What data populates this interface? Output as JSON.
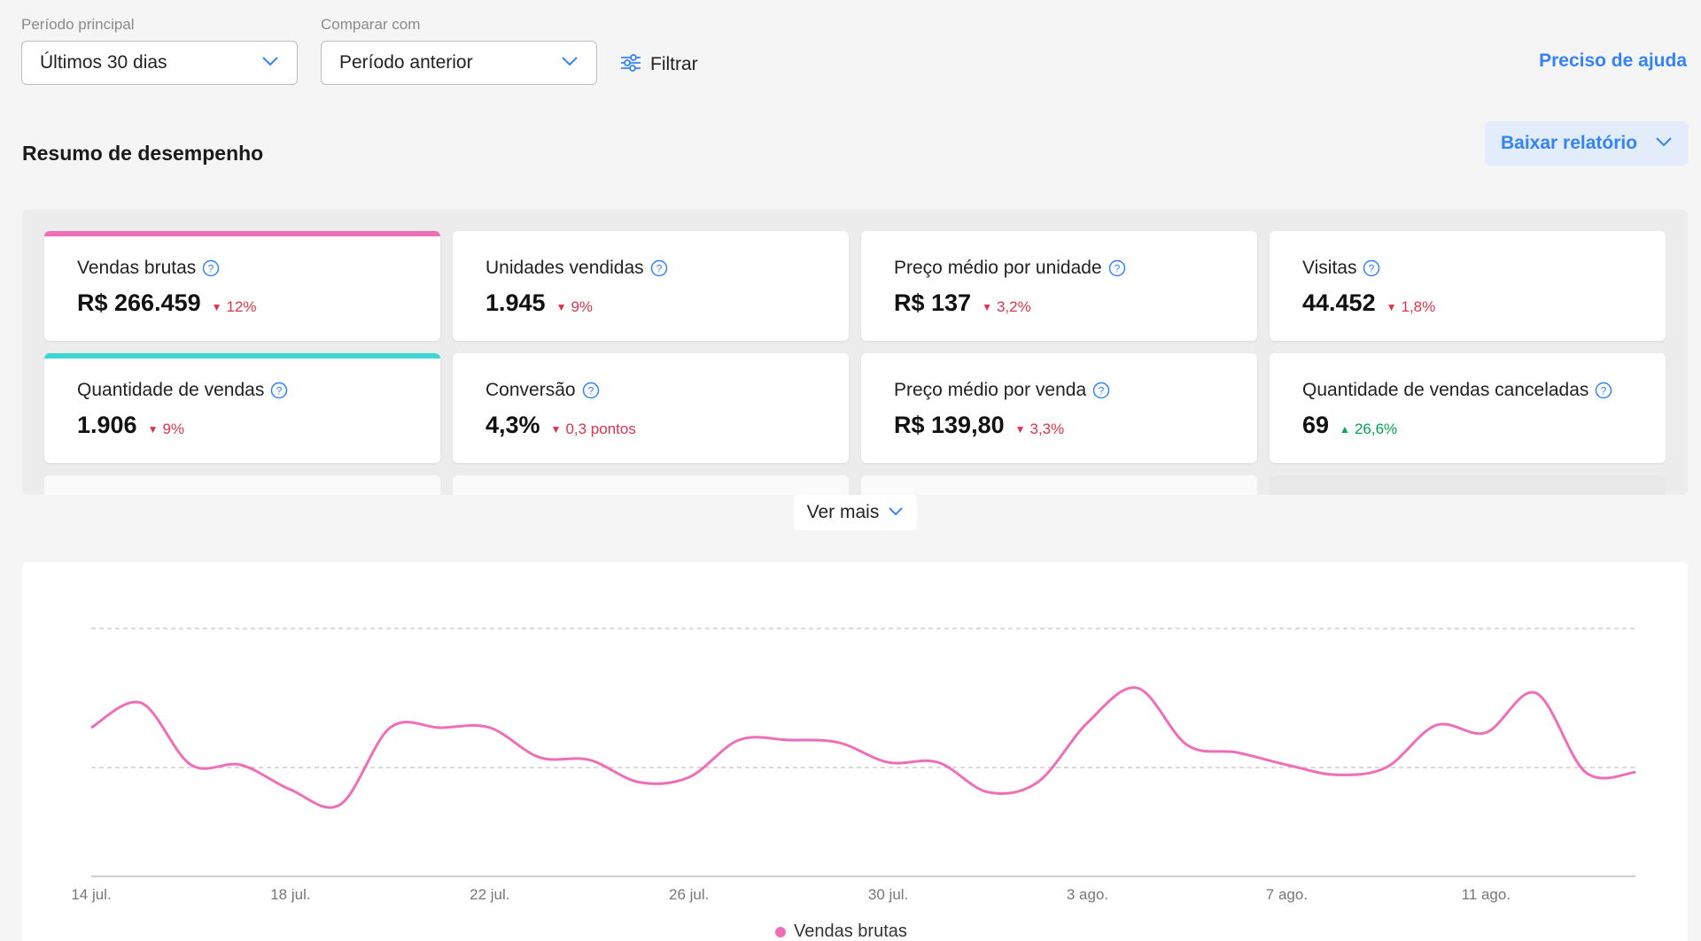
{
  "filters": {
    "primary_label": "Período principal",
    "primary_value": "Últimos 30 dias",
    "compare_label": "Comparar com",
    "compare_value": "Período anterior",
    "filter_label": "Filtrar"
  },
  "help_link": "Preciso de ajuda",
  "summary": {
    "title": "Resumo de desempenho",
    "download_label": "Baixar relatório"
  },
  "metrics": [
    {
      "title": "Vendas brutas",
      "value": "R$ 266.459",
      "delta": "12%",
      "direction": "down",
      "accent": "#ee6fb8"
    },
    {
      "title": "Unidades vendidas",
      "value": "1.945",
      "delta": "9%",
      "direction": "down",
      "accent": ""
    },
    {
      "title": "Preço médio por unidade",
      "value": "R$ 137",
      "delta": "3,2%",
      "direction": "down",
      "accent": ""
    },
    {
      "title": "Visitas",
      "value": "44.452",
      "delta": "1,8%",
      "direction": "down",
      "accent": ""
    },
    {
      "title": "Quantidade de vendas",
      "value": "1.906",
      "delta": "9%",
      "direction": "down",
      "accent": "#3ed6d0"
    },
    {
      "title": "Conversão",
      "value": "4,3%",
      "delta": "0,3 pontos",
      "direction": "down",
      "accent": ""
    },
    {
      "title": "Preço médio por venda",
      "value": "R$ 139,80",
      "delta": "3,3%",
      "direction": "down",
      "accent": ""
    },
    {
      "title": "Quantidade de vendas canceladas",
      "value": "69",
      "delta": "26,6%",
      "direction": "up",
      "accent": ""
    }
  ],
  "see_more_label": "Ver mais",
  "colors": {
    "accent_blue": "#3483fa",
    "delta_down": "#e0334a",
    "delta_up": "#00a650",
    "series_pink": "#ee6fb8"
  },
  "chart_data": {
    "type": "line",
    "x_tick_labels": [
      "14 jul.",
      "18 jul.",
      "22 jul.",
      "26 jul.",
      "30 jul.",
      "3 ago.",
      "7 ago.",
      "11 ago."
    ],
    "x": [
      "14 jul.",
      "15 jul.",
      "16 jul.",
      "17 jul.",
      "18 jul.",
      "19 jul.",
      "20 jul.",
      "21 jul.",
      "22 jul.",
      "23 jul.",
      "24 jul.",
      "25 jul.",
      "26 jul.",
      "27 jul.",
      "28 jul.",
      "29 jul.",
      "30 jul.",
      "31 jul.",
      "1 ago.",
      "2 ago.",
      "3 ago.",
      "4 ago.",
      "5 ago.",
      "6 ago.",
      "7 ago.",
      "8 ago.",
      "9 ago.",
      "10 ago.",
      "11 ago.",
      "12 ago.",
      "13 ago.",
      "14 ago."
    ],
    "series": [
      {
        "name": "Vendas brutas",
        "color": "#ee6fb8",
        "values": [
          0.6,
          0.7,
          0.45,
          0.45,
          0.35,
          0.29,
          0.6,
          0.6,
          0.6,
          0.48,
          0.47,
          0.38,
          0.4,
          0.55,
          0.55,
          0.54,
          0.46,
          0.46,
          0.34,
          0.38,
          0.62,
          0.76,
          0.53,
          0.5,
          0.45,
          0.41,
          0.44,
          0.61,
          0.58,
          0.74,
          0.42,
          0.42
        ]
      }
    ],
    "gridlines": "dashed, 2 horizontal",
    "y_tick_labels": [],
    "legend": "bottom-center"
  }
}
